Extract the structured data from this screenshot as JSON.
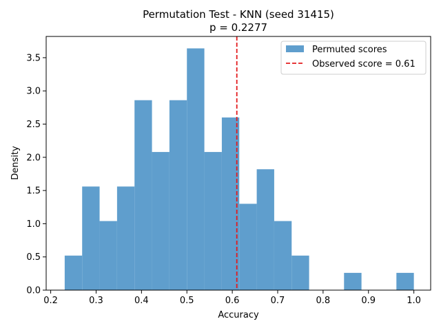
{
  "chart_data": {
    "type": "bar",
    "subtype": "histogram",
    "title": "Permutation Test - KNN (seed 31415)",
    "subtitle": "p = 0.2277",
    "xlabel": "Accuracy",
    "ylabel": "Density",
    "xlim": [
      0.19,
      1.037
    ],
    "ylim": [
      0,
      3.82
    ],
    "x_ticks": [
      "0.2",
      "0.3",
      "0.4",
      "0.5",
      "0.6",
      "0.7",
      "0.8",
      "0.9",
      "1.0"
    ],
    "y_ticks": [
      "0.0",
      "0.5",
      "1.0",
      "1.5",
      "2.0",
      "2.5",
      "3.0",
      "3.5"
    ],
    "bins": {
      "start": 0.2308,
      "width": 0.03846,
      "density": [
        0.52,
        1.56,
        1.04,
        1.56,
        2.86,
        2.08,
        2.86,
        3.64,
        2.08,
        2.6,
        1.3,
        1.82,
        1.04,
        0.52,
        0,
        0,
        0.26,
        0,
        0,
        0.26
      ]
    },
    "observed_score": 0.61,
    "series": [
      {
        "name": "Permuted scores",
        "color": "#5f9ecd",
        "kind": "histogram"
      },
      {
        "name": "Observed score = 0.61",
        "color": "#e31a1c",
        "kind": "vline-dashed"
      }
    ],
    "legend_position": "top-right",
    "grid": false
  }
}
